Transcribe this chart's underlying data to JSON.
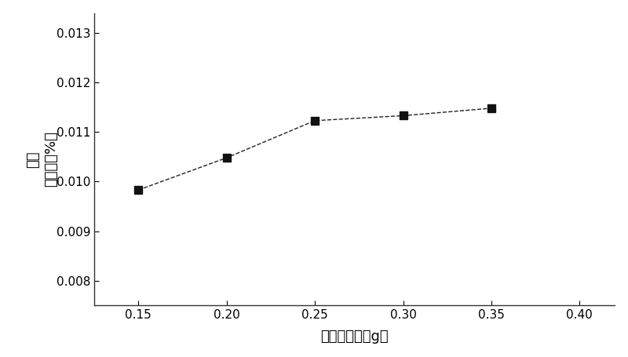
{
  "x": [
    0.15,
    0.2,
    0.25,
    0.3,
    0.35
  ],
  "y": [
    0.00983,
    0.01048,
    0.01123,
    0.01133,
    0.01148
  ],
  "xlabel": "碳酸鑂用量（g）",
  "ylabel_chars": [
    "有效",
    " 碳含量（%）"
  ],
  "xlim": [
    0.125,
    0.42
  ],
  "ylim": [
    0.0075,
    0.0134
  ],
  "xticks": [
    0.15,
    0.2,
    0.25,
    0.3,
    0.35,
    0.4
  ],
  "yticks": [
    0.008,
    0.009,
    0.01,
    0.011,
    0.012,
    0.013
  ],
  "line_color": "#222222",
  "marker": "s",
  "marker_color": "#111111",
  "marker_size": 7,
  "line_style": "--",
  "background_color": "#ffffff",
  "font_size": 12
}
